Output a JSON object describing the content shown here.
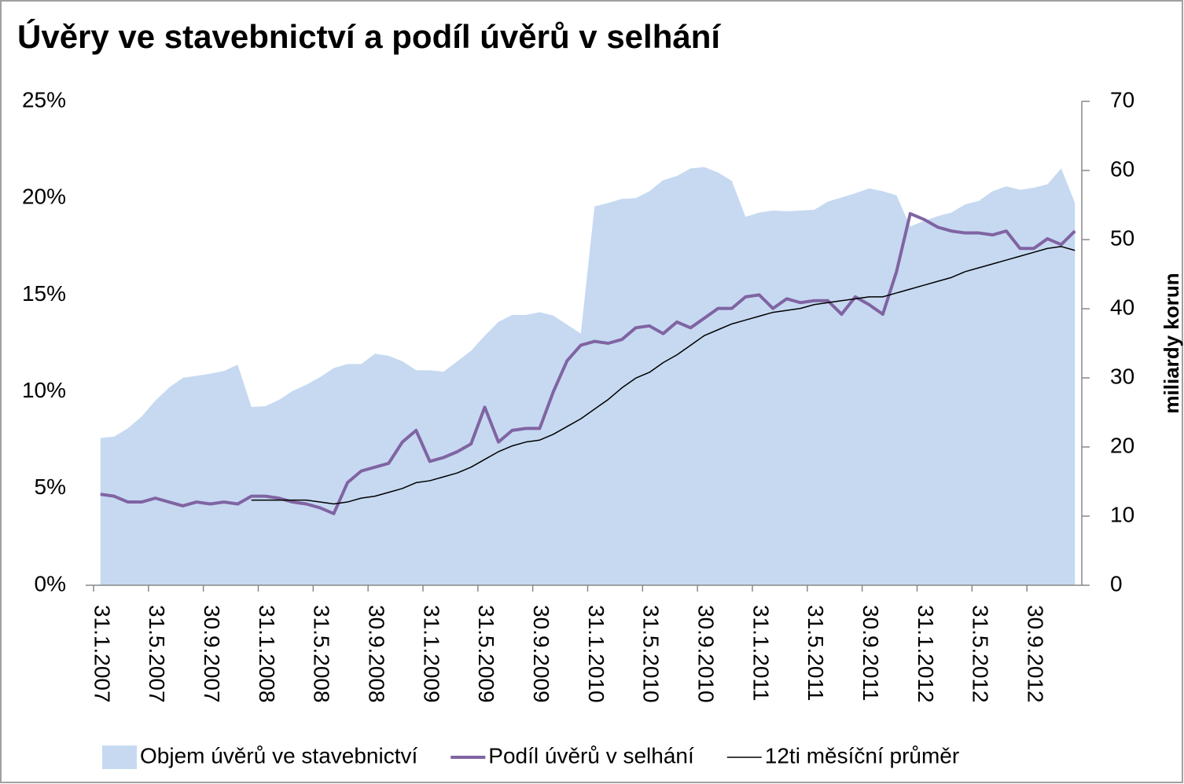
{
  "chart_data": {
    "type": "line",
    "title": "Úvěry ve stavebnictví a podíl úvěrů v selhání",
    "y2label": "miliardy korun",
    "categories": [
      "31.1.2007",
      null,
      null,
      null,
      "31.5.2007",
      null,
      null,
      null,
      "30.9.2007",
      null,
      null,
      null,
      "31.1.2008",
      null,
      null,
      null,
      "31.5.2008",
      null,
      null,
      null,
      "30.9.2008",
      null,
      null,
      null,
      "31.1.2009",
      null,
      null,
      null,
      "31.5.2009",
      null,
      null,
      null,
      "30.9.2009",
      null,
      null,
      null,
      "31.1.2010",
      null,
      null,
      null,
      "31.5.2010",
      null,
      null,
      null,
      "30.9.2010",
      null,
      null,
      null,
      "31.1.2011",
      null,
      null,
      null,
      "31.5.2011",
      null,
      null,
      null,
      "30.9.2011",
      null,
      null,
      null,
      "31.1.2012",
      null,
      null,
      null,
      "31.5.2012",
      null,
      null,
      null,
      "30.9.2012",
      null,
      null,
      null
    ],
    "series": [
      {
        "name": "Objem úvěrů ve stavebnictví",
        "type": "area",
        "axis": "y2",
        "color": "#c6d9f1",
        "values": [
          21.3,
          21.5,
          22.7,
          24.4,
          26.7,
          28.6,
          30.0,
          30.3,
          30.6,
          31.0,
          31.9,
          25.8,
          25.9,
          26.8,
          28.1,
          29.0,
          30.1,
          31.4,
          32.0,
          32.0,
          33.5,
          33.2,
          32.4,
          31.1,
          31.1,
          30.9,
          32.4,
          33.9,
          36.1,
          38.1,
          39.1,
          39.1,
          39.5,
          39.0,
          37.7,
          36.4,
          54.8,
          55.3,
          55.9,
          56.0,
          57.0,
          58.6,
          59.2,
          60.3,
          60.5,
          59.7,
          58.5,
          53.3,
          53.9,
          54.2,
          54.1,
          54.2,
          54.3,
          55.5,
          56.1,
          56.7,
          57.4,
          57.0,
          56.4,
          51.9,
          52.7,
          53.4,
          53.9,
          55.1,
          55.6,
          57.0,
          57.7,
          57.2,
          57.5,
          58.0,
          60.3,
          55.3
        ]
      },
      {
        "name": "Podíl úvěrů v selhání",
        "type": "line",
        "color": "#8064a2",
        "values": [
          4.7,
          4.6,
          4.3,
          4.3,
          4.5,
          4.3,
          4.1,
          4.3,
          4.2,
          4.3,
          4.2,
          4.6,
          4.6,
          4.5,
          4.3,
          4.2,
          4.0,
          3.7,
          5.3,
          5.9,
          6.1,
          6.3,
          7.4,
          8.0,
          6.4,
          6.6,
          6.9,
          7.3,
          9.2,
          7.4,
          8.0,
          8.1,
          8.1,
          10.0,
          11.6,
          12.4,
          12.6,
          12.5,
          12.7,
          13.3,
          13.4,
          13.0,
          13.6,
          13.3,
          13.8,
          14.3,
          14.3,
          14.9,
          15.0,
          14.3,
          14.8,
          14.6,
          14.7,
          14.7,
          14.0,
          14.9,
          14.5,
          14.0,
          16.2,
          19.2,
          18.9,
          18.5,
          18.3,
          18.2,
          18.2,
          18.1,
          18.3,
          17.4,
          17.4,
          17.9,
          17.6,
          18.3
        ]
      },
      {
        "name": "12ti měsíční průměr",
        "type": "line",
        "color": "#000000",
        "values": [
          null,
          null,
          null,
          null,
          null,
          null,
          null,
          null,
          null,
          null,
          null,
          4.4,
          4.4,
          4.4,
          4.4,
          4.4,
          4.3,
          4.2,
          4.3,
          4.5,
          4.6,
          4.8,
          5.0,
          5.3,
          5.4,
          5.6,
          5.8,
          6.1,
          6.5,
          6.9,
          7.2,
          7.4,
          7.5,
          7.8,
          8.2,
          8.6,
          9.1,
          9.6,
          10.2,
          10.7,
          11.0,
          11.5,
          11.9,
          12.4,
          12.9,
          13.2,
          13.5,
          13.7,
          13.9,
          14.1,
          14.2,
          14.3,
          14.5,
          14.6,
          14.7,
          14.8,
          14.9,
          14.9,
          15.1,
          15.3,
          15.5,
          15.7,
          15.9,
          16.2,
          16.4,
          16.6,
          16.8,
          17.0,
          17.2,
          17.4,
          17.5,
          17.3
        ]
      }
    ],
    "ylim": [
      0,
      25
    ],
    "yticks": [
      {
        "value": 0,
        "label": "0%"
      },
      {
        "value": 5,
        "label": "5%"
      },
      {
        "value": 10,
        "label": "10%"
      },
      {
        "value": 15,
        "label": "15%"
      },
      {
        "value": 20,
        "label": "20%"
      },
      {
        "value": 25,
        "label": "25%"
      }
    ],
    "y2lim": [
      0,
      70
    ],
    "y2ticks": [
      0,
      10,
      20,
      30,
      40,
      50,
      60,
      70
    ],
    "grid": false,
    "legend": "bottom"
  }
}
